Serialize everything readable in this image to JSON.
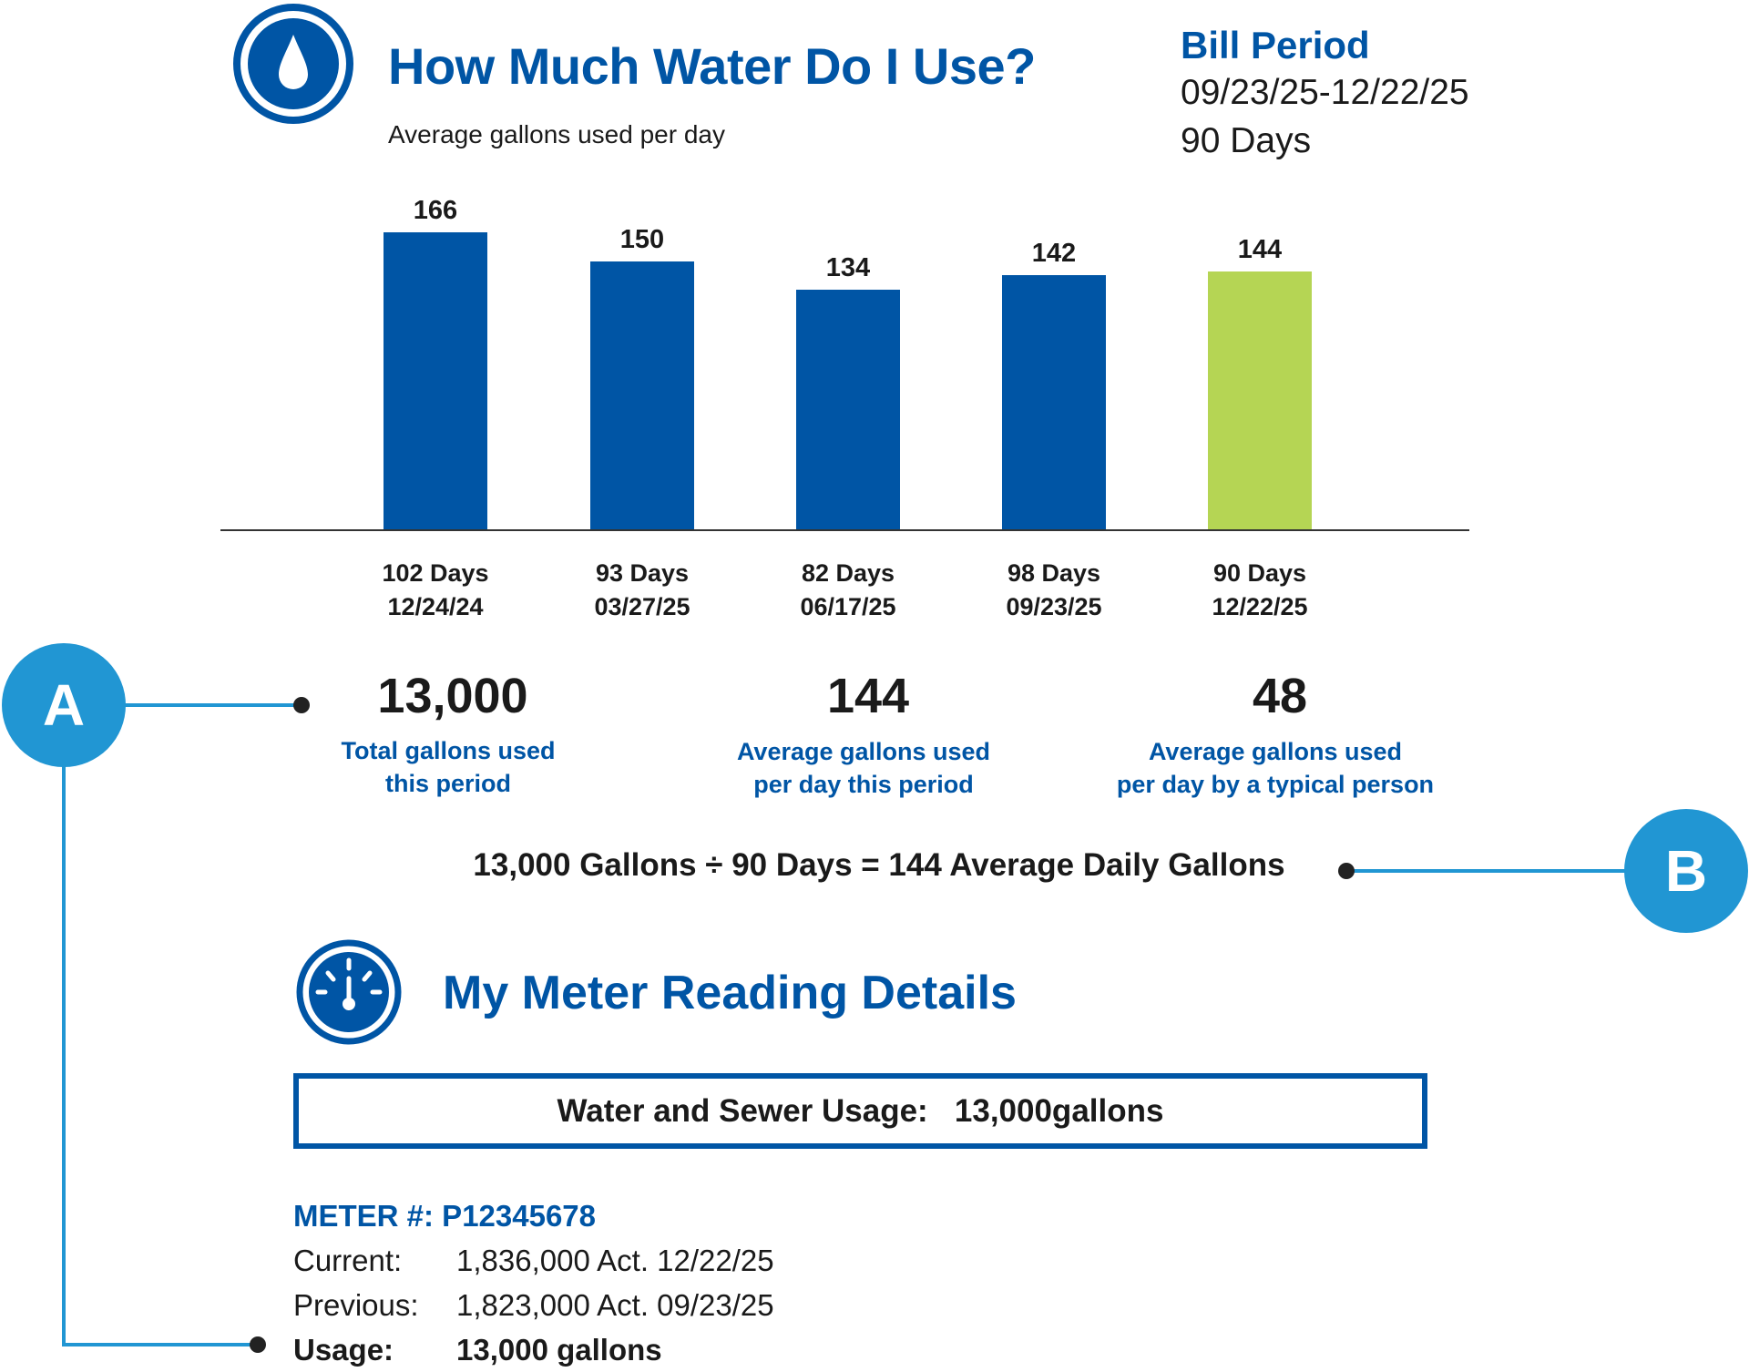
{
  "header": {
    "title": "How Much Water Do I Use?",
    "subtitle": "Average gallons used per day",
    "icon": "water-drop-icon"
  },
  "bill_period": {
    "title": "Bill Period",
    "dates": "09/23/25-12/22/25",
    "days": "90 Days"
  },
  "colors": {
    "primary": "#0055A5",
    "current_bar": "#B5D554",
    "callout": "#2196D3"
  },
  "chart_data": {
    "type": "bar",
    "categories": [
      "102 Days 12/24/24",
      "93 Days 03/27/25",
      "82 Days 06/17/25",
      "98 Days 09/23/25",
      "90 Days 12/22/25"
    ],
    "values": [
      166,
      150,
      134,
      142,
      144
    ],
    "value_labels": [
      "166",
      "150",
      "134",
      "142",
      "144"
    ],
    "x_labels": [
      {
        "days": "102 Days",
        "date": "12/24/24"
      },
      {
        "days": "93 Days",
        "date": "03/27/25"
      },
      {
        "days": "82 Days",
        "date": "06/17/25"
      },
      {
        "days": "98 Days",
        "date": "09/23/25"
      },
      {
        "days": "90 Days",
        "date": "12/22/25"
      }
    ],
    "highlight_index": 4,
    "ylim": [
      0,
      166
    ],
    "grid": false
  },
  "stats": [
    {
      "value": "13,000",
      "label1": "Total gallons used",
      "label2": "this period"
    },
    {
      "value": "144",
      "label1": "Average gallons used",
      "label2": "per day this period"
    },
    {
      "value": "48",
      "label1": "Average gallons used",
      "label2": "per day by a typical person"
    }
  ],
  "formula": "13,000 Gallons ÷ 90 Days = 144 Average Daily Gallons",
  "callouts": {
    "a": "A",
    "b": "B"
  },
  "meter": {
    "title": "My Meter Reading Details",
    "icon": "gauge-icon",
    "usage_box": "Water and Sewer Usage:   13,000gallons",
    "meter_number": "METER #: P12345678",
    "rows": [
      {
        "label": "Current:",
        "value": "1,836,000 Act.  12/22/25"
      },
      {
        "label": "Previous:",
        "value": "1,823,000 Act.  09/23/25"
      },
      {
        "label": "Usage:",
        "value": "13,000 gallons"
      }
    ]
  }
}
